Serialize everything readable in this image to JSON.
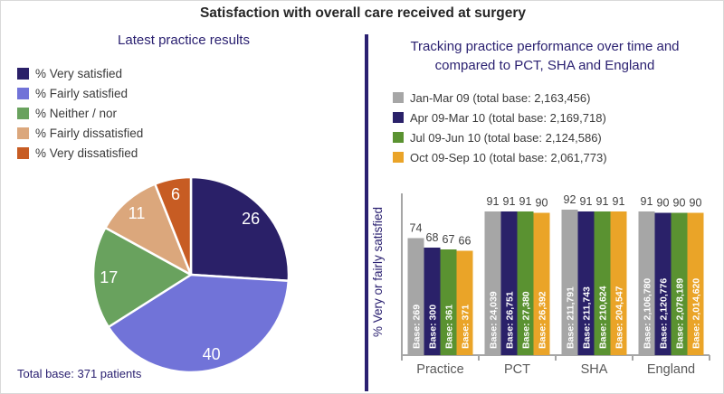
{
  "main_title": "Satisfaction with overall care received at surgery",
  "left_panel": {
    "title": "Latest practice results",
    "footnote": "Total base: 371 patients"
  },
  "right_panel": {
    "title_line1": "Tracking practice performance over time and",
    "title_line2": "compared to PCT, SHA and England"
  },
  "colors": {
    "title_navy": "#2b2171",
    "main_title_text": "#262626",
    "divider": "#2b2171",
    "axis_gray": "#a6a6a6",
    "value_label_text": "#404040",
    "category_label_text": "#595959",
    "legend_text": "#3a3a3a",
    "pie_label_text": "#ffffff",
    "bar_base_label_text": "#ffffff"
  },
  "chart_data": [
    {
      "type": "pie",
      "title": "Latest practice results",
      "labels": [
        "% Very satisfied",
        "% Fairly satisfied",
        "% Neither / nor",
        "% Fairly dissatisfied",
        "% Very dissatisfied"
      ],
      "values": [
        26,
        40,
        17,
        11,
        6
      ],
      "colors": [
        "#2a2068",
        "#7173d8",
        "#69a25e",
        "#dba77c",
        "#c75c23"
      ],
      "data_labels": [
        "26",
        "40",
        "17",
        "11",
        "6"
      ],
      "total_base": "Total base: 371 patients",
      "legend_position": "top-left",
      "start_angle_deg": -90,
      "direction": "clockwise"
    },
    {
      "type": "bar",
      "title": "Tracking practice performance over time and compared to PCT, SHA and England",
      "ylabel": "% Very or fairly satisfied",
      "ylim": [
        0,
        100
      ],
      "grid": false,
      "legend_position": "top",
      "categories": [
        "Practice",
        "PCT",
        "SHA",
        "England"
      ],
      "series": [
        {
          "name": "Jan-Mar 09 (total base: 2,163,456)",
          "color": "#a6a6a6",
          "values": [
            74,
            91,
            92,
            91
          ],
          "base_labels": [
            "Base: 269",
            "Base: 24,039",
            "Base: 211,791",
            "Base: 2,106,780"
          ]
        },
        {
          "name": "Apr 09-Mar 10 (total base: 2,169,718)",
          "color": "#2a2169",
          "values": [
            68,
            91,
            91,
            90
          ],
          "base_labels": [
            "Base: 300",
            "Base: 26,751",
            "Base: 211,743",
            "Base: 2,120,776"
          ]
        },
        {
          "name": "Jul 09-Jun 10 (total base: 2,124,586)",
          "color": "#5a9231",
          "values": [
            67,
            91,
            91,
            90
          ],
          "base_labels": [
            "Base: 361",
            "Base: 27,380",
            "Base: 210,624",
            "Base: 2,078,189"
          ]
        },
        {
          "name": "Oct 09-Sep 10 (total base: 2,061,773)",
          "color": "#eaa428",
          "values": [
            66,
            90,
            91,
            90
          ],
          "base_labels": [
            "Base: 371",
            "Base: 26,392",
            "Base: 204,547",
            "Base: 2,014,620"
          ]
        }
      ]
    }
  ]
}
